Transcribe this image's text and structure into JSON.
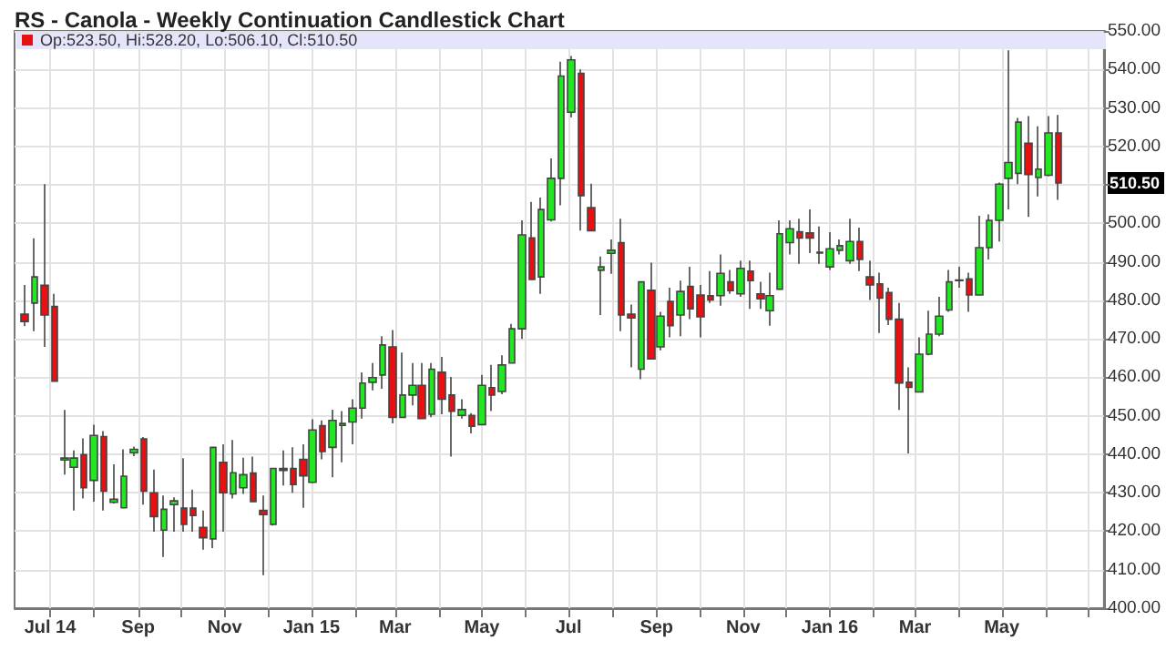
{
  "chart_data": {
    "type": "candlestick",
    "title": "RS - Canola - Weekly Continuation Candlestick Chart",
    "annotations": [
      "Op:523.50, Hi:528.20, Lo:506.10, Cl:510.50",
      {
        "text": "510.50",
        "y": 510.5
      }
    ],
    "x": [
      "2014-06-13",
      "2014-06-20",
      "2014-06-27",
      "2014-07-04",
      "2014-07-11",
      "2014-07-18",
      "2014-07-25",
      "2014-08-01",
      "2014-08-08",
      "2014-08-15",
      "2014-08-22",
      "2014-08-29",
      "2014-09-05",
      "2014-09-12",
      "2014-09-19",
      "2014-09-26",
      "2014-10-03",
      "2014-10-10",
      "2014-10-17",
      "2014-10-24",
      "2014-10-31",
      "2014-11-07",
      "2014-11-14",
      "2014-11-21",
      "2014-11-28",
      "2014-12-05",
      "2014-12-12",
      "2014-12-19",
      "2014-12-26",
      "2015-01-02",
      "2015-01-09",
      "2015-01-16",
      "2015-01-23",
      "2015-01-30",
      "2015-02-06",
      "2015-02-13",
      "2015-02-20",
      "2015-02-27",
      "2015-03-06",
      "2015-03-13",
      "2015-03-20",
      "2015-03-27",
      "2015-04-03",
      "2015-04-10",
      "2015-04-17",
      "2015-04-24",
      "2015-05-01",
      "2015-05-08",
      "2015-05-15",
      "2015-05-22",
      "2015-05-29",
      "2015-06-05",
      "2015-06-12",
      "2015-06-19",
      "2015-06-26",
      "2015-07-03",
      "2015-07-10",
      "2015-07-17",
      "2015-07-24",
      "2015-07-31",
      "2015-08-07",
      "2015-08-14",
      "2015-08-21",
      "2015-08-28",
      "2015-09-04",
      "2015-09-11",
      "2015-09-18",
      "2015-09-25",
      "2015-10-02",
      "2015-10-09",
      "2015-10-16",
      "2015-10-23",
      "2015-10-30",
      "2015-11-06",
      "2015-11-13",
      "2015-11-20",
      "2015-11-27",
      "2015-12-04",
      "2015-12-11",
      "2015-12-18",
      "2015-12-25",
      "2016-01-01",
      "2016-01-08",
      "2016-01-15",
      "2016-01-22",
      "2016-01-29",
      "2016-02-05",
      "2016-02-12",
      "2016-02-19",
      "2016-02-26",
      "2016-03-04",
      "2016-03-11",
      "2016-03-18",
      "2016-03-25",
      "2016-04-01",
      "2016-04-08",
      "2016-04-15",
      "2016-04-22",
      "2016-04-29",
      "2016-05-06",
      "2016-05-13",
      "2016-05-20",
      "2016-05-27",
      "2016-06-03",
      "2016-06-10"
    ],
    "ohlc": [
      [
        476.4,
        484.0,
        473.3,
        474.5
      ],
      [
        479.3,
        496.1,
        472.0,
        486.1
      ],
      [
        483.9,
        510.2,
        467.9,
        476.2
      ],
      [
        478.4,
        481.7,
        459.0,
        459.0
      ],
      [
        438.5,
        451.5,
        434.7,
        439.0
      ],
      [
        436.6,
        441.0,
        425.4,
        439.0
      ],
      [
        439.9,
        444.1,
        428.5,
        431.3
      ],
      [
        433.2,
        447.7,
        427.7,
        444.9
      ],
      [
        444.6,
        446.0,
        425.4,
        430.4
      ],
      [
        427.5,
        437.4,
        427.2,
        428.3
      ],
      [
        426.1,
        441.3,
        426.1,
        434.3
      ],
      [
        440.4,
        442.0,
        439.5,
        441.3
      ],
      [
        444.0,
        444.5,
        426.9,
        430.4
      ],
      [
        430.0,
        436.0,
        419.9,
        423.8
      ],
      [
        420.3,
        429.3,
        413.3,
        425.7
      ],
      [
        426.9,
        428.8,
        419.9,
        427.9
      ],
      [
        426.0,
        439.0,
        419.9,
        421.8
      ],
      [
        426.0,
        430.8,
        419.9,
        424.1
      ],
      [
        421.0,
        425.4,
        415.2,
        418.3
      ],
      [
        418.0,
        441.8,
        415.6,
        441.8
      ],
      [
        437.9,
        442.6,
        419.9,
        430.0
      ],
      [
        429.7,
        443.7,
        428.5,
        435.2
      ],
      [
        431.3,
        439.1,
        429.7,
        434.7
      ],
      [
        435.1,
        439.4,
        427.7,
        427.7
      ],
      [
        425.4,
        429.3,
        408.6,
        424.3
      ],
      [
        421.8,
        436.5,
        421.5,
        436.3
      ],
      [
        436.3,
        441.0,
        431.9,
        435.8
      ],
      [
        436.3,
        441.8,
        430.0,
        432.1
      ],
      [
        438.7,
        442.6,
        426.1,
        434.4
      ],
      [
        432.7,
        449.1,
        432.5,
        446.3
      ],
      [
        447.4,
        448.8,
        438.7,
        440.7
      ],
      [
        441.8,
        451.6,
        434.0,
        448.8
      ],
      [
        447.5,
        451.2,
        437.9,
        448.0
      ],
      [
        448.4,
        454.3,
        442.6,
        452.0
      ],
      [
        452.0,
        461.3,
        449.3,
        458.5
      ],
      [
        458.7,
        463.7,
        456.6,
        459.9
      ],
      [
        460.6,
        470.7,
        457.0,
        468.4
      ],
      [
        467.9,
        472.3,
        448.0,
        449.6
      ],
      [
        449.6,
        466.4,
        449.6,
        455.4
      ],
      [
        455.4,
        463.7,
        452.7,
        457.9
      ],
      [
        457.9,
        463.7,
        449.3,
        449.3
      ],
      [
        450.4,
        463.7,
        449.6,
        462.1
      ],
      [
        461.3,
        465.3,
        450.4,
        454.3
      ],
      [
        455.4,
        460.1,
        439.4,
        451.2
      ],
      [
        450.1,
        454.3,
        449.3,
        451.6
      ],
      [
        450.1,
        450.7,
        445.4,
        447.3
      ],
      [
        447.7,
        460.6,
        447.7,
        457.9
      ],
      [
        457.3,
        463.2,
        451.2,
        455.4
      ],
      [
        456.3,
        465.7,
        455.6,
        463.2
      ],
      [
        463.7,
        473.9,
        463.7,
        472.6
      ],
      [
        472.6,
        500.8,
        470.0,
        497.0
      ],
      [
        496.2,
        505.6,
        485.4,
        485.4
      ],
      [
        486.1,
        506.7,
        481.7,
        503.6
      ],
      [
        500.9,
        516.9,
        500.5,
        511.7
      ],
      [
        511.7,
        542.0,
        504.7,
        538.3
      ],
      [
        528.9,
        543.5,
        527.5,
        542.5
      ],
      [
        539.0,
        540.0,
        498.1,
        507.2
      ],
      [
        504.1,
        510.3,
        498.0,
        498.1
      ],
      [
        487.8,
        491.4,
        476.2,
        488.7
      ],
      [
        492.2,
        495.8,
        486.9,
        493.0
      ],
      [
        495.0,
        501.2,
        472.0,
        476.2
      ],
      [
        476.4,
        478.9,
        462.6,
        475.4
      ],
      [
        462.1,
        485.0,
        459.5,
        484.8
      ],
      [
        482.6,
        489.8,
        464.8,
        464.8
      ],
      [
        467.9,
        477.0,
        467.0,
        475.9
      ],
      [
        479.7,
        483.3,
        470.4,
        473.4
      ],
      [
        476.2,
        485.1,
        470.7,
        482.3
      ],
      [
        483.6,
        488.7,
        475.1,
        477.8
      ],
      [
        481.4,
        484.0,
        470.4,
        475.7
      ],
      [
        481.2,
        487.6,
        479.3,
        480.1
      ],
      [
        481.2,
        491.9,
        478.6,
        487.0
      ],
      [
        484.8,
        487.9,
        481.7,
        482.5
      ],
      [
        481.7,
        490.3,
        480.9,
        488.3
      ],
      [
        487.6,
        490.3,
        477.8,
        485.1
      ],
      [
        481.7,
        484.8,
        477.8,
        480.4
      ],
      [
        477.3,
        487.2,
        473.4,
        481.2
      ],
      [
        482.9,
        500.8,
        482.9,
        497.3
      ],
      [
        495.0,
        500.8,
        491.9,
        498.6
      ],
      [
        497.8,
        501.2,
        489.5,
        496.2
      ],
      [
        497.5,
        503.6,
        492.3,
        496.2
      ],
      [
        492.3,
        499.2,
        489.5,
        492.5
      ],
      [
        488.7,
        497.7,
        487.9,
        493.4
      ],
      [
        493.0,
        495.8,
        491.9,
        494.2
      ],
      [
        490.3,
        501.2,
        489.5,
        495.3
      ],
      [
        495.3,
        498.9,
        487.6,
        490.6
      ],
      [
        486.1,
        490.3,
        480.1,
        484.0
      ],
      [
        484.3,
        487.2,
        471.5,
        480.6
      ],
      [
        482.0,
        483.3,
        473.6,
        475.1
      ],
      [
        475.1,
        479.3,
        451.5,
        458.5
      ],
      [
        458.7,
        462.6,
        440.2,
        457.4
      ],
      [
        456.2,
        470.4,
        456.0,
        466.0
      ],
      [
        466.0,
        477.3,
        465.7,
        471.2
      ],
      [
        471.2,
        480.9,
        470.7,
        475.9
      ],
      [
        477.5,
        487.9,
        477.0,
        484.8
      ],
      [
        485.1,
        488.7,
        483.3,
        485.3
      ],
      [
        485.6,
        487.2,
        477.0,
        481.4
      ],
      [
        481.4,
        502.0,
        481.4,
        493.7
      ],
      [
        493.7,
        502.3,
        490.6,
        500.8
      ],
      [
        500.8,
        510.6,
        495.3,
        510.2
      ],
      [
        511.7,
        545.0,
        503.6,
        515.8
      ],
      [
        513.0,
        527.4,
        510.2,
        526.3
      ],
      [
        520.8,
        527.9,
        501.7,
        512.7
      ],
      [
        511.9,
        525.2,
        507.0,
        514.1
      ],
      [
        512.5,
        527.9,
        512.2,
        523.5
      ],
      [
        523.5,
        528.2,
        506.1,
        510.5
      ]
    ],
    "colors": [
      "#e81010",
      "#22e822",
      "#e81010",
      "#e81010",
      "#22e822",
      "#22e822",
      "#e81010",
      "#22e822",
      "#e81010",
      "#22e822",
      "#22e822",
      "#22e822",
      "#e81010",
      "#e81010",
      "#22e822",
      "#22e822",
      "#e81010",
      "#e81010",
      "#e81010",
      "#22e822",
      "#e81010",
      "#22e822",
      "#22e822",
      "#e81010",
      "#e81010",
      "#22e822",
      "#e81010",
      "#e81010",
      "#e81010",
      "#22e822",
      "#e81010",
      "#22e822",
      "#22e822",
      "#22e822",
      "#22e822",
      "#22e822",
      "#22e822",
      "#e81010",
      "#22e822",
      "#22e822",
      "#e81010",
      "#22e822",
      "#e81010",
      "#e81010",
      "#22e822",
      "#e81010",
      "#22e822",
      "#e81010",
      "#22e822",
      "#22e822",
      "#22e822",
      "#e81010",
      "#22e822",
      "#22e822",
      "#22e822",
      "#22e822",
      "#e81010",
      "#e81010",
      "#22e822",
      "#22e822",
      "#e81010",
      "#e81010",
      "#22e822",
      "#e81010",
      "#22e822",
      "#e81010",
      "#22e822",
      "#e81010",
      "#e81010",
      "#e81010",
      "#22e822",
      "#e81010",
      "#22e822",
      "#e81010",
      "#e81010",
      "#22e822",
      "#22e822",
      "#22e822",
      "#e81010",
      "#e81010",
      "#22e822",
      "#22e822",
      "#22e822",
      "#22e822",
      "#e81010",
      "#e81010",
      "#e81010",
      "#e81010",
      "#e81010",
      "#e81010",
      "#22e822",
      "#22e822",
      "#22e822",
      "#22e822",
      "#22e822",
      "#e81010",
      "#22e822",
      "#22e822",
      "#22e822",
      "#22e822",
      "#22e822",
      "#e81010",
      "#22e822",
      "#22e822",
      "#e81010"
    ],
    "xlim": [
      "2014-06-06",
      "2016-07-12"
    ],
    "xticks": [
      {
        "value": "2014-07-01",
        "label": "Jul 14"
      },
      {
        "value": "2014-08-01",
        "label": null
      },
      {
        "value": "2014-09-01",
        "label": "Sep"
      },
      {
        "value": "2014-10-01",
        "label": null
      },
      {
        "value": "2014-11-01",
        "label": "Nov"
      },
      {
        "value": "2014-12-01",
        "label": null
      },
      {
        "value": "2015-01-01",
        "label": "Jan 15"
      },
      {
        "value": "2015-02-01",
        "label": null
      },
      {
        "value": "2015-03-01",
        "label": "Mar"
      },
      {
        "value": "2015-04-01",
        "label": null
      },
      {
        "value": "2015-05-01",
        "label": "May"
      },
      {
        "value": "2015-06-01",
        "label": null
      },
      {
        "value": "2015-07-01",
        "label": "Jul"
      },
      {
        "value": "2015-08-01",
        "label": null
      },
      {
        "value": "2015-09-01",
        "label": "Sep"
      },
      {
        "value": "2015-10-01",
        "label": null
      },
      {
        "value": "2015-11-01",
        "label": "Nov"
      },
      {
        "value": "2015-12-01",
        "label": null
      },
      {
        "value": "2016-01-01",
        "label": "Jan 16"
      },
      {
        "value": "2016-02-01",
        "label": null
      },
      {
        "value": "2016-03-01",
        "label": "Mar"
      },
      {
        "value": "2016-04-01",
        "label": null
      },
      {
        "value": "2016-05-01",
        "label": "May"
      },
      {
        "value": "2016-06-01",
        "label": null
      },
      {
        "value": "2016-07-01",
        "label": null
      }
    ],
    "ylim": [
      400,
      550
    ],
    "yticks": [
      {
        "value": 400,
        "label": "400.00"
      },
      {
        "value": 410,
        "label": "410.00"
      },
      {
        "value": 420,
        "label": "420.00"
      },
      {
        "value": 430,
        "label": "430.00"
      },
      {
        "value": 440,
        "label": "440.00"
      },
      {
        "value": 450,
        "label": "450.00"
      },
      {
        "value": 460,
        "label": "460.00"
      },
      {
        "value": 470,
        "label": "470.00"
      },
      {
        "value": 480,
        "label": "480.00"
      },
      {
        "value": 490,
        "label": "490.00"
      },
      {
        "value": 500,
        "label": "500.00"
      },
      {
        "value": 510,
        "label": null
      },
      {
        "value": 520,
        "label": "520.00"
      },
      {
        "value": 530,
        "label": "530.00"
      },
      {
        "value": 540,
        "label": "540.00"
      },
      {
        "value": 550,
        "label": "550.00"
      }
    ],
    "grid": true
  }
}
